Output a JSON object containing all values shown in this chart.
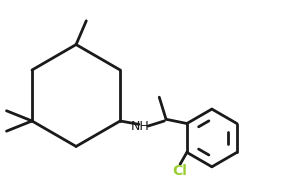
{
  "bg_color": "#ffffff",
  "line_color": "#1a1a1a",
  "label_color": "#1a1a1a",
  "cl_color": "#9acd32",
  "line_width": 2.0,
  "font_size": 9
}
